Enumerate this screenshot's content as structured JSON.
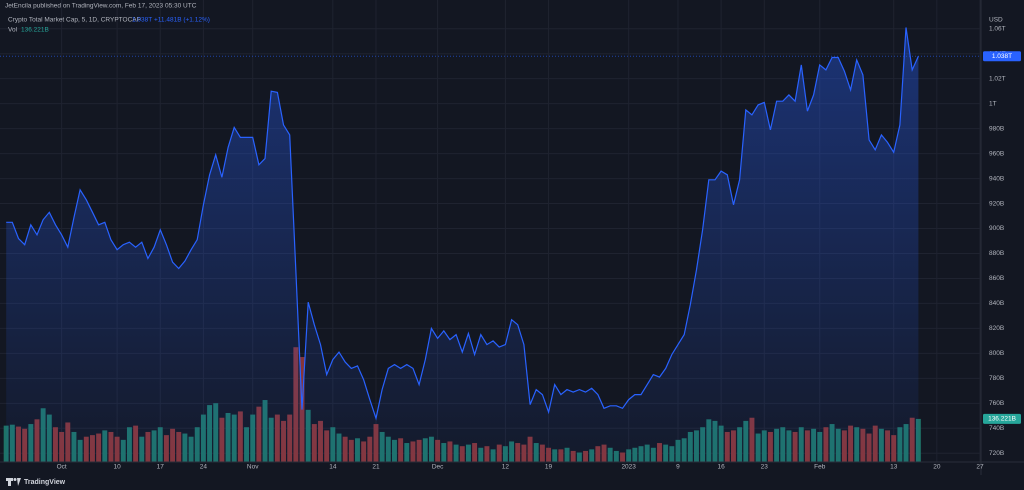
{
  "header": {
    "publisher": "JetEncila published on TradingView.com, Feb 17, 2023 05:30 UTC",
    "symbol": "Crypto Total Market Cap, 5, 1D, CRYPTOCAP",
    "last": "1.038T",
    "change": "+11.481B (+1.12%)",
    "vol_label": "Vol",
    "vol_last": "136.221B",
    "brand": "TradingView"
  },
  "chart_data": {
    "type": "area",
    "y_unit": "USD",
    "color": "#2962ff",
    "grid": true,
    "xlim": [
      -1,
      158
    ],
    "xticks": [
      {
        "value": 9,
        "label": "Oct"
      },
      {
        "value": 18,
        "label": "10"
      },
      {
        "value": 25,
        "label": "17"
      },
      {
        "value": 32,
        "label": "24"
      },
      {
        "value": 40,
        "label": "Nov"
      },
      {
        "value": 53,
        "label": "14"
      },
      {
        "value": 60,
        "label": "21"
      },
      {
        "value": 70,
        "label": "Dec"
      },
      {
        "value": 81,
        "label": "12"
      },
      {
        "value": 88,
        "label": "19"
      },
      {
        "value": 101,
        "label": "2023"
      },
      {
        "value": 109,
        "label": "9"
      },
      {
        "value": 116,
        "label": "16"
      },
      {
        "value": 123,
        "label": "23"
      },
      {
        "value": 132,
        "label": "Feb"
      },
      {
        "value": 144,
        "label": "13"
      },
      {
        "value": 151,
        "label": "20"
      },
      {
        "value": 158,
        "label": "27"
      }
    ],
    "ylim": [
      713,
      1071
    ],
    "yticks": [
      {
        "value": 720,
        "label": "720B"
      },
      {
        "value": 740,
        "label": "740B"
      },
      {
        "value": 760,
        "label": "760B"
      },
      {
        "value": 780,
        "label": "780B"
      },
      {
        "value": 800,
        "label": "800B"
      },
      {
        "value": 820,
        "label": "820B"
      },
      {
        "value": 840,
        "label": "840B"
      },
      {
        "value": 860,
        "label": "860B"
      },
      {
        "value": 880,
        "label": "880B"
      },
      {
        "value": 900,
        "label": "900B"
      },
      {
        "value": 920,
        "label": "920B"
      },
      {
        "value": 940,
        "label": "940B"
      },
      {
        "value": 960,
        "label": "960B"
      },
      {
        "value": 980,
        "label": "980B"
      },
      {
        "value": 1000,
        "label": "1T"
      },
      {
        "value": 1020,
        "label": "1.02T"
      },
      {
        "value": 1040,
        "label": "1.04T"
      },
      {
        "value": 1060,
        "label": "1.06T"
      }
    ],
    "values": [
      905,
      905,
      892,
      887,
      903,
      895,
      907,
      913,
      903,
      895,
      885,
      909,
      931,
      923,
      913,
      903,
      905,
      891,
      883,
      887,
      889,
      885,
      889,
      876,
      885,
      899,
      887,
      873,
      868,
      874,
      883,
      891,
      919,
      943,
      959,
      941,
      965,
      981,
      973,
      973,
      973,
      951,
      956,
      1010,
      1009,
      983,
      975,
      867,
      755,
      841,
      823,
      807,
      783,
      795,
      801,
      793,
      788,
      790,
      779,
      763,
      748,
      771,
      788,
      791,
      788,
      791,
      788,
      775,
      795,
      820,
      812,
      818,
      811,
      815,
      801,
      816,
      799,
      815,
      807,
      810,
      805,
      807,
      827,
      823,
      807,
      759,
      771,
      767,
      753,
      775,
      767,
      771,
      769,
      771,
      769,
      772,
      767,
      756,
      758,
      758,
      756,
      763,
      767,
      767,
      775,
      783,
      781,
      788,
      799,
      807,
      815,
      839,
      867,
      899,
      939,
      939,
      946,
      943,
      919,
      939,
      995,
      991,
      999,
      1001,
      979,
      1002,
      1002,
      1007,
      1002,
      1031,
      994,
      1007,
      1031,
      1027,
      1037,
      1037,
      1026,
      1011,
      1035,
      1023,
      971,
      963,
      975,
      969,
      961,
      983,
      1061,
      1027,
      1038
    ],
    "volume": {
      "ylim": [
        0,
        370
      ],
      "up_color": "#1e7368",
      "down_color": "#873538",
      "values": [
        115,
        118,
        112,
        105,
        120,
        135,
        170,
        150,
        110,
        95,
        125,
        95,
        70,
        80,
        85,
        90,
        100,
        95,
        80,
        70,
        110,
        115,
        80,
        95,
        100,
        110,
        85,
        105,
        95,
        90,
        80,
        110,
        150,
        180,
        186,
        140,
        155,
        150,
        160,
        110,
        150,
        175,
        196,
        140,
        150,
        130,
        150,
        363,
        332,
        165,
        120,
        130,
        100,
        110,
        90,
        80,
        70,
        75,
        65,
        80,
        120,
        95,
        80,
        70,
        75,
        60,
        65,
        70,
        75,
        80,
        70,
        60,
        65,
        55,
        50,
        55,
        60,
        45,
        50,
        40,
        55,
        50,
        65,
        60,
        55,
        80,
        60,
        55,
        45,
        40,
        40,
        45,
        35,
        30,
        35,
        40,
        50,
        55,
        45,
        35,
        30,
        40,
        45,
        50,
        55,
        45,
        60,
        55,
        50,
        70,
        75,
        95,
        100,
        110,
        135,
        130,
        115,
        95,
        100,
        110,
        130,
        140,
        90,
        100,
        95,
        105,
        110,
        100,
        95,
        110,
        100,
        105,
        95,
        110,
        120,
        105,
        100,
        115,
        110,
        105,
        90,
        115,
        105,
        100,
        85,
        110,
        120,
        140,
        136.221
      ]
    }
  }
}
